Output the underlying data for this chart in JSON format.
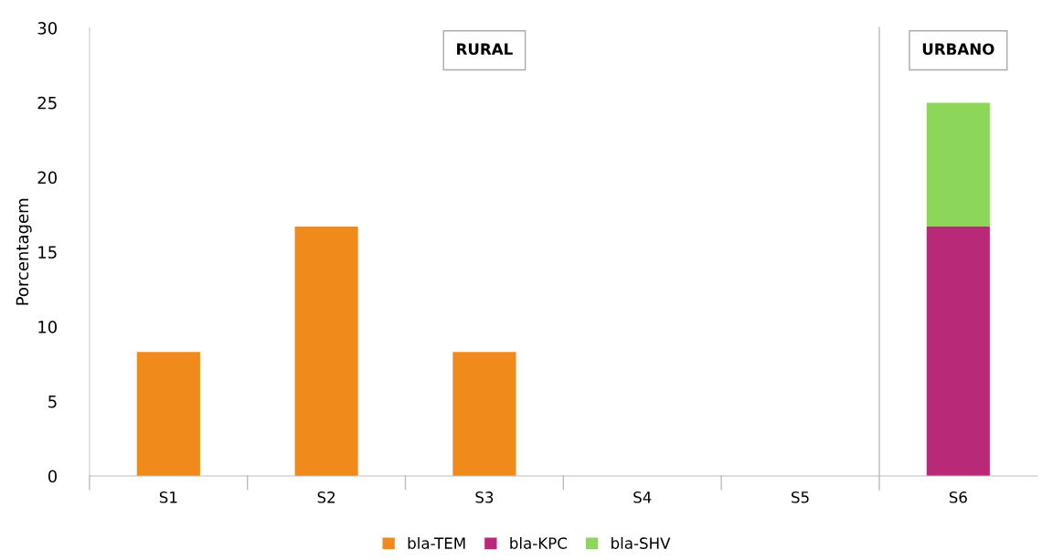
{
  "chart_data": {
    "type": "bar",
    "stacked": true,
    "ylabel": "Porcentagem",
    "categories": [
      "S1",
      "S2",
      "S3",
      "S4",
      "S5",
      "S6"
    ],
    "series": [
      {
        "name": "bla-TEM",
        "color": "#f08a1a",
        "values": [
          8.3,
          16.7,
          8.3,
          0,
          0,
          0
        ]
      },
      {
        "name": "bla-KPC",
        "color": "#b82a78",
        "values": [
          0,
          0,
          0,
          0,
          0,
          16.7
        ]
      },
      {
        "name": "bla-SHV",
        "color": "#8cd65a",
        "values": [
          0,
          0,
          0,
          0,
          0,
          8.3
        ]
      }
    ],
    "ylim": [
      0,
      30
    ],
    "yticks": [
      0,
      5,
      10,
      15,
      20,
      25,
      30
    ],
    "annotations": [
      "RURAL",
      "URBANO"
    ],
    "grid": false,
    "legend": "bottom"
  }
}
